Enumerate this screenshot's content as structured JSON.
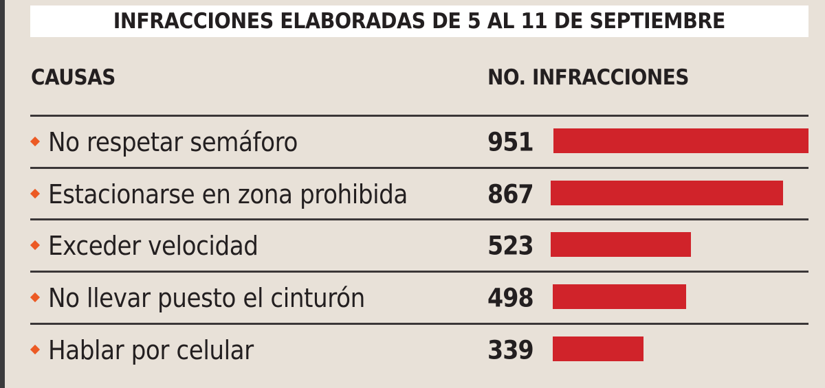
{
  "title": "INFRACCIONES ELABORADAS DE 5 AL 11 DE SEPTIEMBRE",
  "headers": {
    "causes": "CAUSAS",
    "count": "NO. INFRACCIONES"
  },
  "colors": {
    "background": "#e8e1d8",
    "bar": "#d0232a",
    "bullet": "#ec5a24",
    "rule": "#3a3637",
    "title_band": "#ffffff",
    "text": "#231f20"
  },
  "chart_data": {
    "type": "bar",
    "orientation": "horizontal",
    "title": "INFRACCIONES ELABORADAS DE 5 AL 11 DE SEPTIEMBRE",
    "xlabel": "NO. INFRACCIONES",
    "ylabel": "CAUSAS",
    "categories": [
      "No respetar semáforo",
      "Estacionarse en zona prohibida",
      "Exceder velocidad",
      "No llevar puesto el cinturón",
      "Hablar por celular"
    ],
    "values": [
      951,
      867,
      523,
      498,
      339
    ],
    "xlim": [
      0,
      951
    ],
    "grid": false,
    "legend": "none"
  }
}
